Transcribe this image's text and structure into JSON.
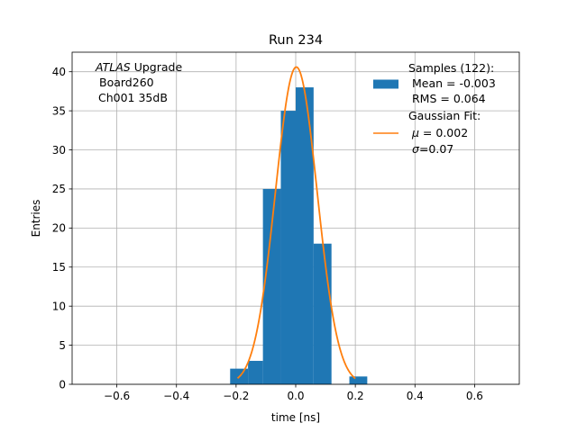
{
  "chart_data": {
    "type": "bar",
    "title": "Run 234",
    "xlabel": "time [ns]",
    "ylabel": "Entries",
    "xlim": [
      -0.75,
      0.75
    ],
    "ylim": [
      0,
      42.5
    ],
    "x_ticks": [
      -0.6,
      -0.4,
      -0.2,
      0.0,
      0.2,
      0.4,
      0.6
    ],
    "x_tick_labels": [
      "−0.6",
      "−0.4",
      "−0.2",
      "0.0",
      "0.2",
      "0.4",
      "0.6"
    ],
    "y_ticks": [
      0,
      5,
      10,
      15,
      20,
      25,
      30,
      35,
      40
    ],
    "y_tick_labels": [
      "0",
      "5",
      "10",
      "15",
      "20",
      "25",
      "30",
      "35",
      "40"
    ],
    "grid": true,
    "histogram": {
      "bins": [
        {
          "x0": -0.22,
          "x1": -0.16,
          "count": 2
        },
        {
          "x0": -0.16,
          "x1": -0.11,
          "count": 3
        },
        {
          "x0": -0.11,
          "x1": -0.05,
          "count": 25
        },
        {
          "x0": -0.05,
          "x1": 0.0,
          "count": 35
        },
        {
          "x0": 0.0,
          "x1": 0.06,
          "count": 38
        },
        {
          "x0": 0.06,
          "x1": 0.12,
          "count": 18
        },
        {
          "x0": 0.18,
          "x1": 0.24,
          "count": 1
        }
      ],
      "color": "#1f77b4"
    },
    "fit": {
      "type": "gaussian",
      "amplitude": 40.6,
      "mu": 0.002,
      "sigma": 0.07,
      "x_range": [
        -0.195,
        0.2
      ],
      "color": "#ff7f0e"
    },
    "annotation": {
      "line1_italic": "ATLAS",
      "line1_rest": " Upgrade",
      "line2": "Board260",
      "line3": "Ch001 35dB"
    },
    "legend": {
      "placement": "top-right",
      "samples": {
        "line1": "Samples (122):",
        "line2": "Mean = -0.003",
        "line3": "RMS = 0.064"
      },
      "fit": {
        "line1": "Gaussian Fit:",
        "line2_sym": "μ",
        "line2_rest": " = 0.002",
        "line3_sym": "σ",
        "line3_rest": "=0.07"
      }
    }
  }
}
